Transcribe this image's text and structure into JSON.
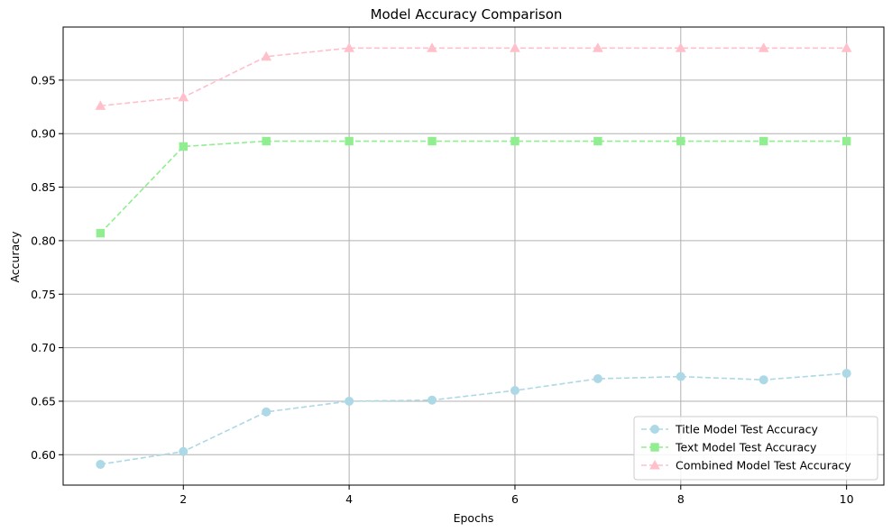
{
  "chart_data": {
    "type": "line",
    "title": "Model Accuracy Comparison",
    "xlabel": "Epochs",
    "ylabel": "Accuracy",
    "x": [
      1,
      2,
      3,
      4,
      5,
      6,
      7,
      8,
      9,
      10
    ],
    "xlim": [
      0.55,
      10.45
    ],
    "ylim": [
      0.5716,
      0.9996
    ],
    "xticks": [
      2,
      4,
      6,
      8,
      10
    ],
    "xtick_labels": [
      "2",
      "4",
      "6",
      "8",
      "10"
    ],
    "yticks": [
      0.6,
      0.65,
      0.7,
      0.75,
      0.8,
      0.85,
      0.9,
      0.95
    ],
    "ytick_labels": [
      "0.60",
      "0.65",
      "0.70",
      "0.75",
      "0.80",
      "0.85",
      "0.90",
      "0.95"
    ],
    "grid": true,
    "legend_position": "bottom-right",
    "series": [
      {
        "name": "Title Model Test Accuracy",
        "marker": "circle",
        "line_style": "dashed",
        "color": "#add8e6",
        "values": [
          0.591,
          0.603,
          0.64,
          0.65,
          0.651,
          0.66,
          0.671,
          0.673,
          0.67,
          0.676
        ]
      },
      {
        "name": "Text Model Test Accuracy",
        "marker": "square",
        "line_style": "dashed",
        "color": "#90ee90",
        "values": [
          0.807,
          0.888,
          0.893,
          0.893,
          0.893,
          0.893,
          0.893,
          0.893,
          0.893,
          0.893
        ]
      },
      {
        "name": "Combined Model Test Accuracy",
        "marker": "triangle",
        "line_style": "dashed",
        "color": "#ffc0cb",
        "values": [
          0.926,
          0.934,
          0.972,
          0.98,
          0.98,
          0.98,
          0.98,
          0.98,
          0.98,
          0.98
        ]
      }
    ]
  }
}
